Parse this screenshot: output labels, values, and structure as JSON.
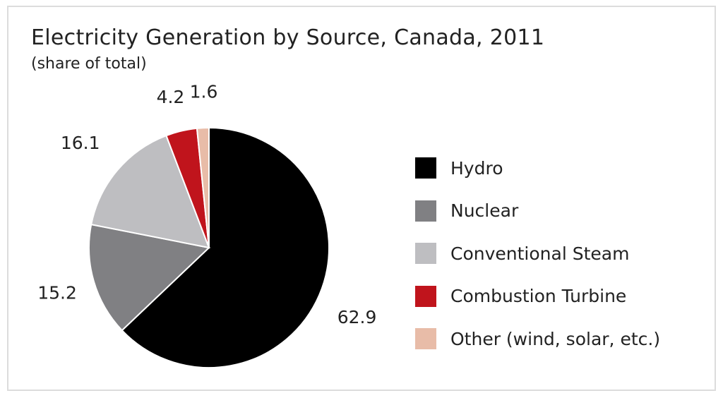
{
  "chart_data": {
    "type": "pie",
    "title": "Electricity Generation by Source, Canada, 2011",
    "subtitle": "(share of total)",
    "legend_position": "right",
    "slices": [
      {
        "label": "Hydro",
        "value": 62.9,
        "value_label": "62.9",
        "color": "#000000"
      },
      {
        "label": "Nuclear",
        "value": 15.2,
        "value_label": "15.2",
        "color": "#808083"
      },
      {
        "label": "Conventional Steam",
        "value": 16.1,
        "value_label": "16.1",
        "color": "#bebec1"
      },
      {
        "label": "Combustion Turbine",
        "value": 4.2,
        "value_label": "4.2",
        "color": "#c0141c"
      },
      {
        "label": "Other (wind, solar, etc.)",
        "value": 1.6,
        "value_label": "1.6",
        "color": "#e8bca8"
      }
    ]
  }
}
